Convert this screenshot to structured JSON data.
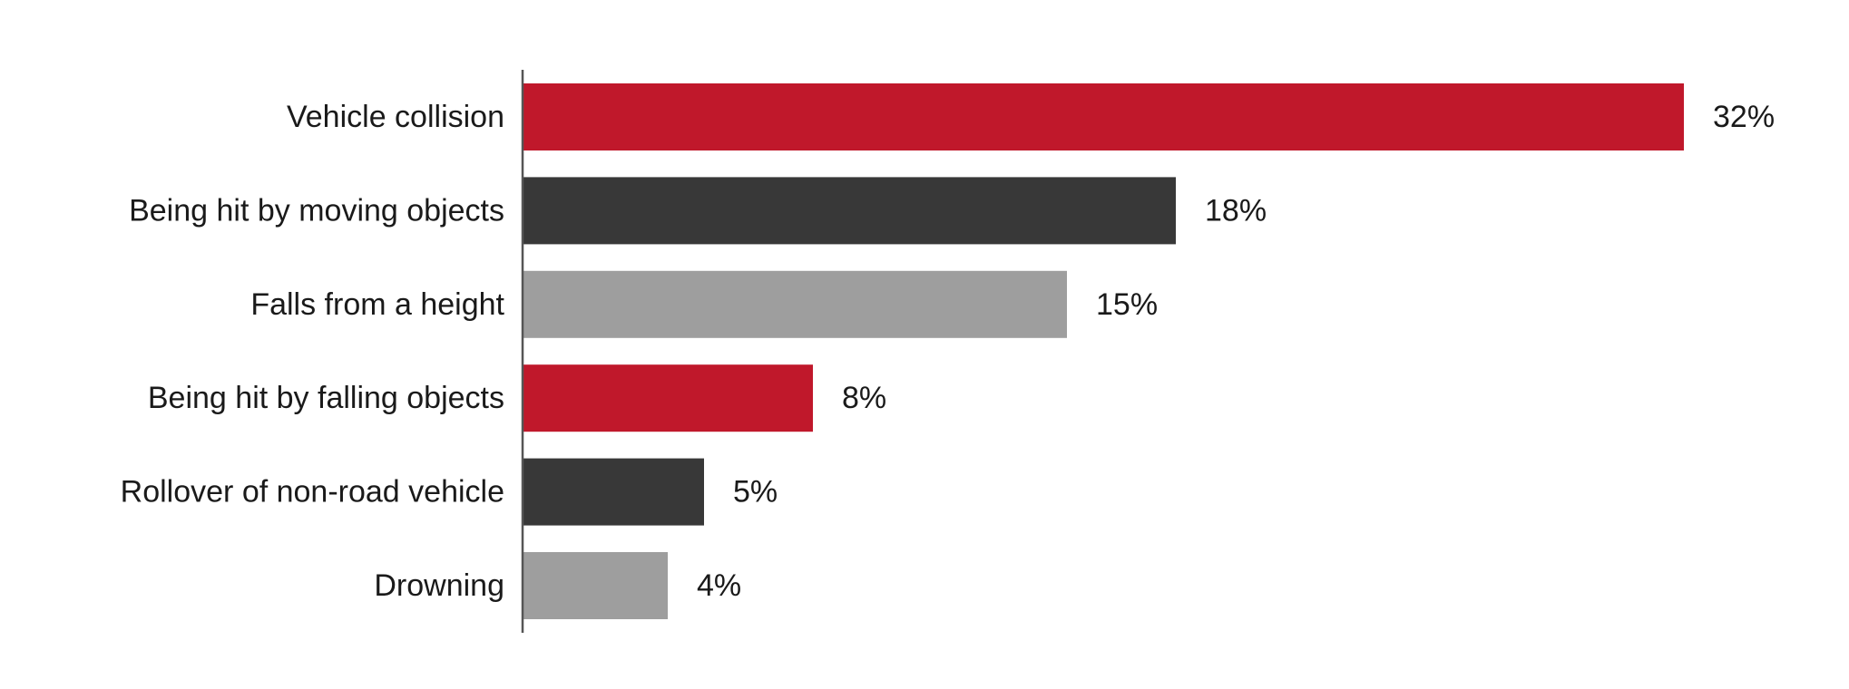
{
  "chart_data": {
    "type": "bar",
    "orientation": "horizontal",
    "categories": [
      "Vehicle collision",
      "Being hit by moving objects",
      "Falls from a height",
      "Being hit by falling objects",
      "Rollover of non-road vehicle",
      "Drowning"
    ],
    "values": [
      32,
      18,
      15,
      8,
      5,
      4
    ],
    "value_labels": [
      "32%",
      "18%",
      "15%",
      "8%",
      "5%",
      "4%"
    ],
    "colors": [
      "#c0182b",
      "#383838",
      "#9e9e9e",
      "#c0182b",
      "#383838",
      "#9e9e9e"
    ],
    "title": "",
    "xlabel": "",
    "ylabel": "",
    "xlim": [
      0,
      32
    ],
    "grid": false,
    "legend": "none"
  }
}
